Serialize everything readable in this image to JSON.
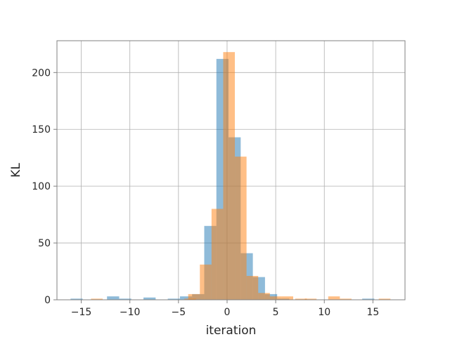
{
  "chart_data": {
    "type": "histogram",
    "xlabel": "iteration",
    "ylabel": "KL",
    "xlim": [
      -17.5,
      18.3
    ],
    "ylim": [
      0,
      228
    ],
    "xticks": [
      -15,
      -10,
      -5,
      0,
      5,
      10,
      15
    ],
    "yticks": [
      0,
      50,
      100,
      150,
      200
    ],
    "grid": true,
    "series": [
      {
        "color": "#1f77b4",
        "opacity": 0.5,
        "bin_width": 1.25,
        "bins": [
          {
            "x0": -16.1,
            "count": 1
          },
          {
            "x0": -12.35,
            "count": 3
          },
          {
            "x0": -11.1,
            "count": 1
          },
          {
            "x0": -8.6,
            "count": 2
          },
          {
            "x0": -6.1,
            "count": 1
          },
          {
            "x0": -4.85,
            "count": 3
          },
          {
            "x0": -3.6,
            "count": 5
          },
          {
            "x0": -2.35,
            "count": 65
          },
          {
            "x0": -1.1,
            "count": 212
          },
          {
            "x0": 0.15,
            "count": 143
          },
          {
            "x0": 1.4,
            "count": 41
          },
          {
            "x0": 2.65,
            "count": 20
          },
          {
            "x0": 3.9,
            "count": 5
          },
          {
            "x0": 5.15,
            "count": 1
          },
          {
            "x0": 13.9,
            "count": 1
          }
        ]
      },
      {
        "color": "#ff7f0e",
        "opacity": 0.5,
        "bin_width": 1.2,
        "bins": [
          {
            "x0": -14.0,
            "count": 1
          },
          {
            "x0": -4.4,
            "count": 1
          },
          {
            "x0": -4.0,
            "count": 5
          },
          {
            "x0": -2.8,
            "count": 31
          },
          {
            "x0": -1.6,
            "count": 80
          },
          {
            "x0": -0.4,
            "count": 218
          },
          {
            "x0": 0.8,
            "count": 126
          },
          {
            "x0": 2.0,
            "count": 21
          },
          {
            "x0": 3.2,
            "count": 6
          },
          {
            "x0": 4.4,
            "count": 3
          },
          {
            "x0": 5.6,
            "count": 3
          },
          {
            "x0": 7.0,
            "count": 1
          },
          {
            "x0": 8.0,
            "count": 1
          },
          {
            "x0": 10.4,
            "count": 3
          },
          {
            "x0": 11.6,
            "count": 1
          },
          {
            "x0": 15.6,
            "count": 1
          }
        ]
      }
    ]
  }
}
